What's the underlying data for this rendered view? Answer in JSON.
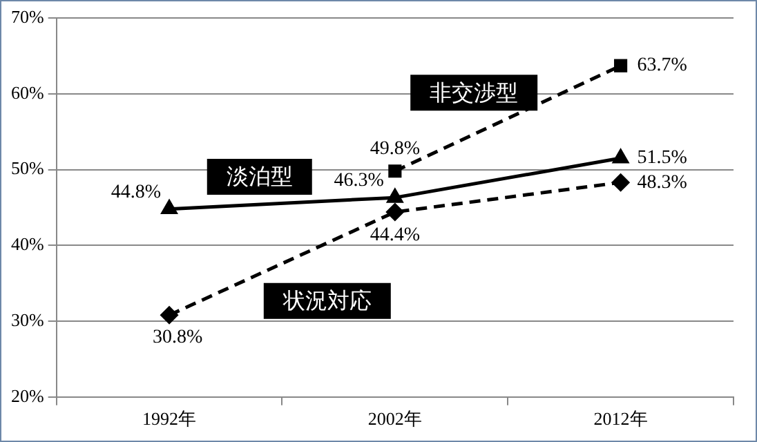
{
  "chart_data": {
    "type": "line",
    "categories": [
      "1992年",
      "2002年",
      "2012年"
    ],
    "series": [
      {
        "name": "淡泊型",
        "color": "#000000",
        "values": [
          44.8,
          46.3,
          51.5
        ],
        "value_labels": [
          "44.8%",
          "46.3%",
          "51.5%"
        ],
        "marker": "triangle",
        "line_style": "solid"
      },
      {
        "name": "非交渉型",
        "color": "#000000",
        "values": [
          null,
          49.8,
          63.7
        ],
        "value_labels": [
          null,
          "49.8%",
          "63.7%"
        ],
        "marker": "square",
        "line_style": "dashed"
      },
      {
        "name": "状況対応",
        "color": "#000000",
        "values": [
          30.8,
          44.4,
          48.3
        ],
        "value_labels": [
          "30.8%",
          "44.4%",
          "48.3%"
        ],
        "marker": "diamond",
        "line_style": "dashed"
      }
    ],
    "ylim": [
      20,
      70
    ],
    "yticks": [
      {
        "value": 20,
        "label": "20%"
      },
      {
        "value": 30,
        "label": "30%"
      },
      {
        "value": 40,
        "label": "40%"
      },
      {
        "value": 50,
        "label": "50%"
      },
      {
        "value": 60,
        "label": "60%"
      },
      {
        "value": 70,
        "label": "70%"
      }
    ],
    "grid": "y",
    "legend": false
  }
}
